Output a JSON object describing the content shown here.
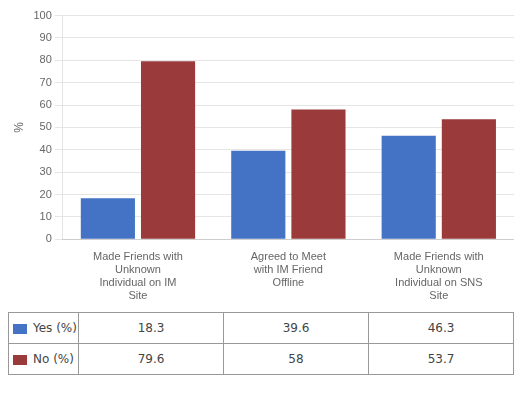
{
  "chart_data": {
    "type": "bar",
    "categories": [
      "Made Friends with\nUnknown\nIndividual on IM\nSite",
      "Agreed to Meet\nwith IM Friend\nOffline",
      "Made Friends with\nUnknown\nIndividual on SNS\nSite"
    ],
    "series": [
      {
        "name": "Yes (%)",
        "color": "#4472C4",
        "values": [
          18.3,
          39.6,
          46.3
        ]
      },
      {
        "name": "No (%)",
        "color": "#9B3A3A",
        "values": [
          79.6,
          58,
          53.7
        ]
      }
    ],
    "ylabel": "%",
    "ylim": [
      0,
      100
    ],
    "yticks": [
      0,
      10,
      20,
      30,
      40,
      50,
      60,
      70,
      80,
      90,
      100
    ],
    "grid": true,
    "legend": "bottom"
  }
}
